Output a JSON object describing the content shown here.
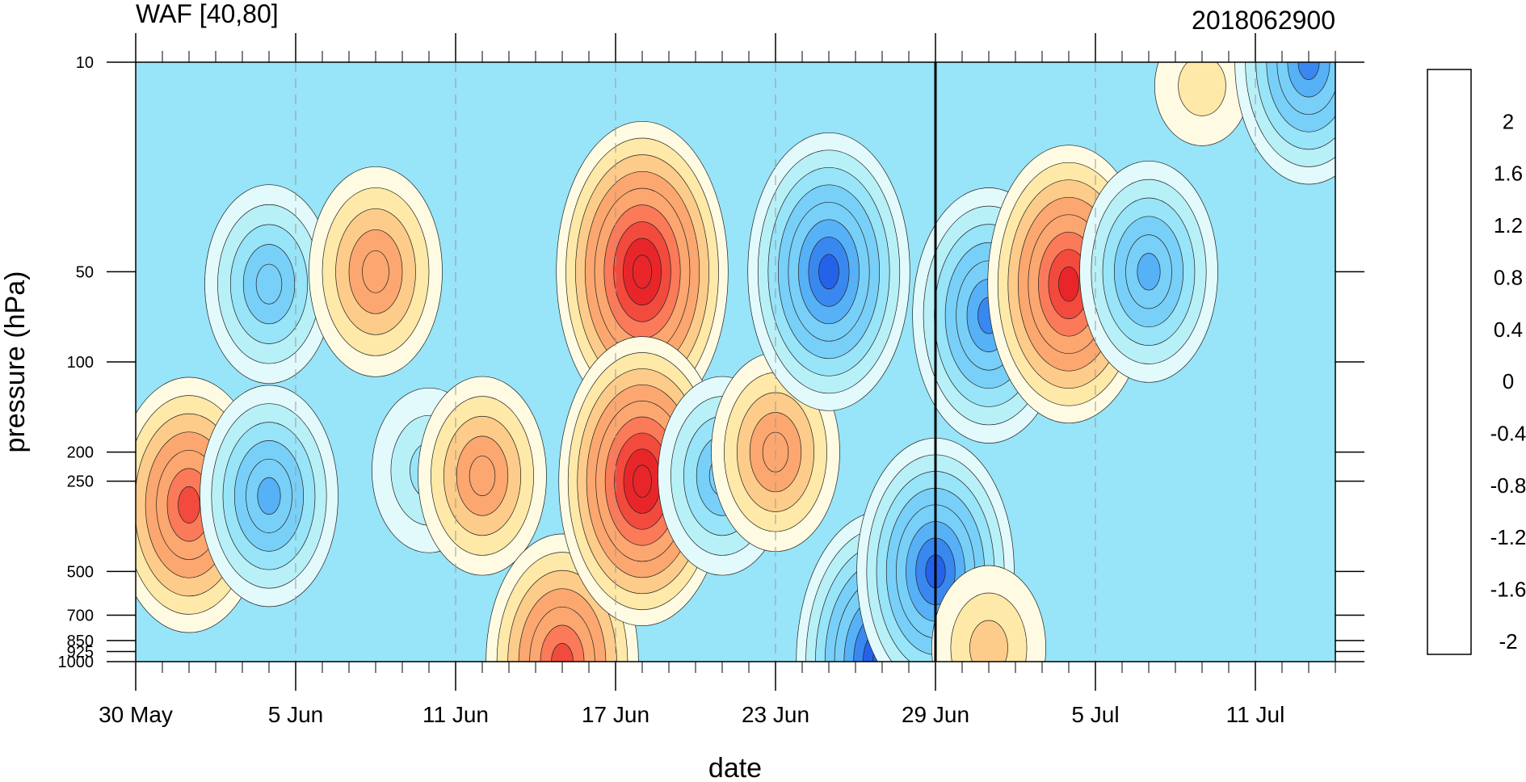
{
  "chart_data": {
    "type": "heatmap",
    "title": "WAF [40,80]",
    "right_title": "2018062900",
    "xlabel": "date",
    "ylabel": "pressure (hPa)",
    "x_ticks": [
      "30 May",
      "5 Jun",
      "11 Jun",
      "17 Jun",
      "23 Jun",
      "29 Jun",
      "5 Jul",
      "11 Jul"
    ],
    "x_range": [
      "2018-05-30",
      "2018-07-14"
    ],
    "y_ticks": [
      10,
      50,
      100,
      200,
      250,
      500,
      700,
      850,
      925,
      1000
    ],
    "y_tick_labels": [
      "10",
      "50",
      "100",
      "200",
      "250",
      "500",
      "700",
      "850",
      "925",
      "1000"
    ],
    "y_scale": "log",
    "y_range": [
      1000,
      10
    ],
    "reference_line_date": "2018-06-29",
    "colorbar": {
      "labels": [
        "2",
        "1.6",
        "1.2",
        "0.8",
        "0.4",
        "0",
        "-0.4",
        "-0.8",
        "-1.2",
        "-1.6",
        "-2"
      ],
      "colors": [
        "#a50026",
        "#d7191c",
        "#e8262a",
        "#f24a3c",
        "#fb7a59",
        "#fca76f",
        "#fdcc8a",
        "#fee9a8",
        "#fefbe2",
        "#e2fafc",
        "#b8f0f8",
        "#98e4f8",
        "#78d0f8",
        "#56b1f6",
        "#3988f0",
        "#2562ea",
        "#1432e6",
        "#1a12dc"
      ]
    },
    "features": [
      {
        "date": "2018-06-01",
        "pressure": 300,
        "value": 1.4
      },
      {
        "date": "2018-06-04",
        "pressure": 280,
        "value": -1.1
      },
      {
        "date": "2018-06-04",
        "pressure": 55,
        "value": -0.9
      },
      {
        "date": "2018-06-08",
        "pressure": 50,
        "value": 1.0
      },
      {
        "date": "2018-06-10",
        "pressure": 230,
        "value": -0.6
      },
      {
        "date": "2018-06-12",
        "pressure": 240,
        "value": 0.9
      },
      {
        "date": "2018-06-15",
        "pressure": 1000,
        "value": 1.4
      },
      {
        "date": "2018-06-18",
        "pressure": 50,
        "value": 1.8
      },
      {
        "date": "2018-06-18",
        "pressure": 250,
        "value": 1.7
      },
      {
        "date": "2018-06-21",
        "pressure": 240,
        "value": -0.9
      },
      {
        "date": "2018-06-23",
        "pressure": 200,
        "value": 0.9
      },
      {
        "date": "2018-06-25",
        "pressure": 50,
        "value": -1.6
      },
      {
        "date": "2018-06-27",
        "pressure": 1000,
        "value": -1.8
      },
      {
        "date": "2018-06-29",
        "pressure": 500,
        "value": -1.5
      },
      {
        "date": "2018-07-01",
        "pressure": 70,
        "value": -1.4
      },
      {
        "date": "2018-07-01",
        "pressure": 900,
        "value": 0.6
      },
      {
        "date": "2018-07-04",
        "pressure": 55,
        "value": 1.6
      },
      {
        "date": "2018-07-07",
        "pressure": 50,
        "value": -1.1
      },
      {
        "date": "2018-07-09",
        "pressure": 12,
        "value": 0.2
      },
      {
        "date": "2018-07-13",
        "pressure": 10,
        "value": -1.3
      }
    ]
  }
}
